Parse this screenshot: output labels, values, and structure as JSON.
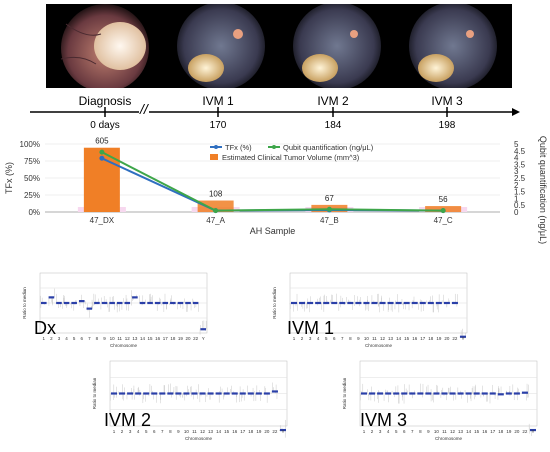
{
  "timeline": {
    "events": [
      {
        "label": "Diagnosis",
        "day": "0 days"
      },
      {
        "label": "IVM 1",
        "day": "170"
      },
      {
        "label": "IVM 2",
        "day": "184"
      },
      {
        "label": "IVM 3",
        "day": "198"
      }
    ],
    "break_mark": "//"
  },
  "chart_data": {
    "type": "bar",
    "categories": [
      "47_DX",
      "47_A",
      "47_B",
      "47_C"
    ],
    "xlabel": "AH Sample",
    "ylabel": "TFx (%)",
    "y2label": "Qubit quantification (ng/μL)",
    "ylim": [
      0,
      100
    ],
    "y2lim": [
      0,
      5
    ],
    "yticks": [
      "0%",
      "25%",
      "50%",
      "75%",
      "100%"
    ],
    "y2ticks": [
      "0",
      "0.5",
      "1",
      "1.5",
      "2",
      "2.5",
      "3",
      "3.5",
      "4",
      "4.5",
      "5"
    ],
    "bar_series": {
      "name": "Estimated Clinical Tumor Volume (mm^3)",
      "values": [
        605,
        108,
        67,
        56
      ],
      "color": "#f07f26"
    },
    "line_series": [
      {
        "name": "TFx (%)",
        "axis": "left",
        "values": [
          79,
          2,
          3,
          2
        ],
        "color": "#2f6fc0"
      },
      {
        "name": "Qubit quantification (ng/μL)",
        "axis": "right",
        "values": [
          4.4,
          0.1,
          0.2,
          0.1
        ],
        "color": "#3ea64a"
      }
    ],
    "bar_labels": [
      "605",
      "108",
      "67",
      "56"
    ],
    "legend_position": "center-right"
  },
  "cnv_panels": [
    {
      "label": "Dx",
      "ylabel": "Ratio to median",
      "xlabel": "Chromosome"
    },
    {
      "label": "IVM 1",
      "ylabel": "Ratio to median",
      "xlabel": "Chromosome"
    },
    {
      "label": "IVM 2",
      "ylabel": "Ratio to median",
      "xlabel": "Chromosome"
    },
    {
      "label": "IVM 3",
      "ylabel": "Ratio to median",
      "xlabel": "Chromosome"
    }
  ],
  "chromosomes": [
    "1",
    "2",
    "3",
    "4",
    "5",
    "6",
    "7",
    "8",
    "9",
    "10",
    "11",
    "12",
    "13",
    "14",
    "15",
    "16",
    "17",
    "18",
    "19",
    "20",
    "22",
    "Y"
  ]
}
